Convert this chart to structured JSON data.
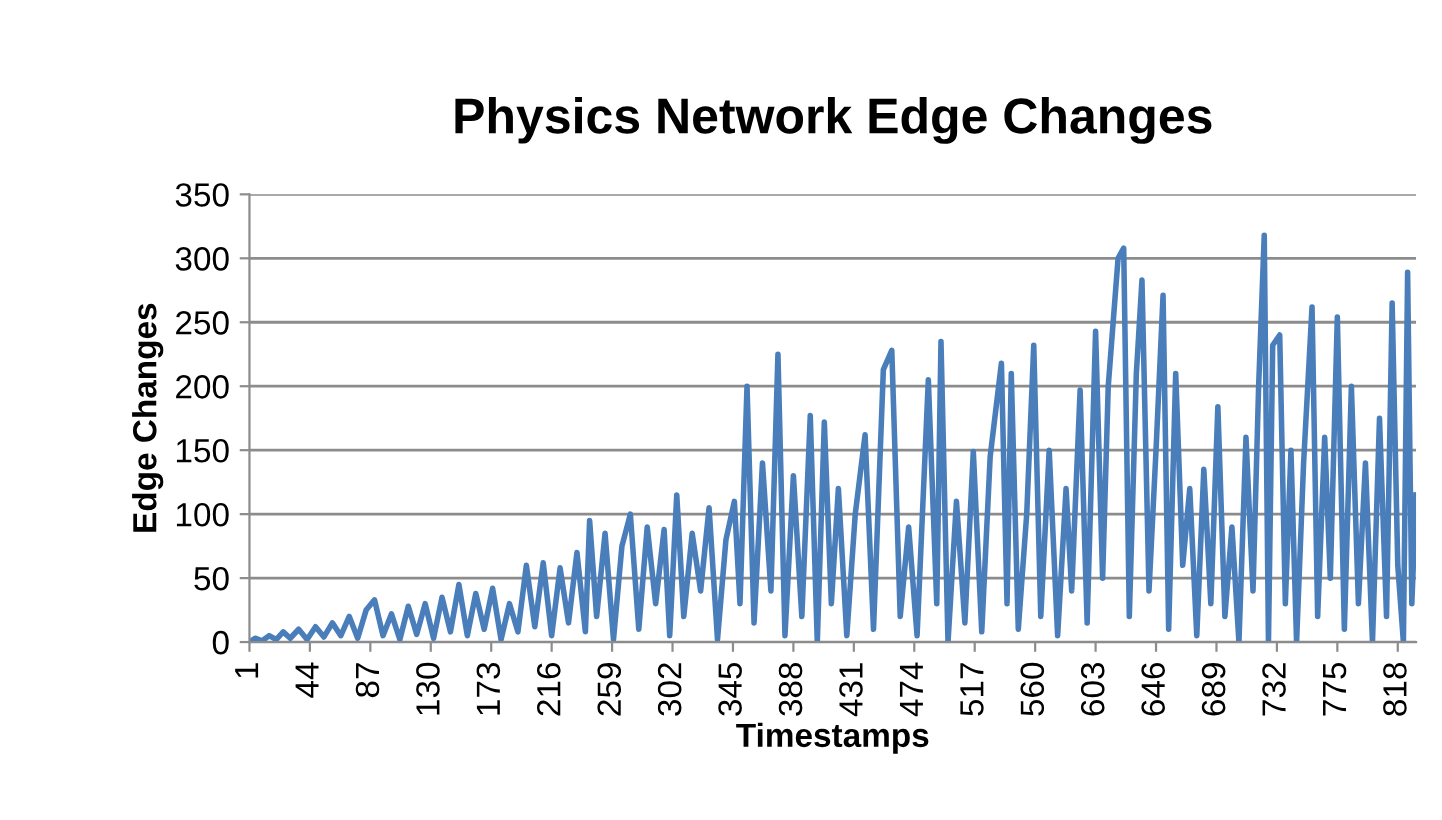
{
  "chart_data": {
    "type": "line",
    "title": "Physics Network Edge Changes",
    "xlabel": "Timestamps",
    "ylabel": "Edge Changes",
    "series": [
      {
        "color": "#4a7ebb",
        "x": [
          1,
          5,
          10,
          15,
          20,
          25,
          30,
          36,
          42,
          48,
          54,
          60,
          66,
          72,
          78,
          84,
          90,
          96,
          102,
          108,
          114,
          120,
          126,
          132,
          138,
          144,
          150,
          156,
          162,
          168,
          174,
          180,
          186,
          192,
          198,
          204,
          210,
          216,
          222,
          228,
          234,
          240,
          243,
          248,
          254,
          260,
          266,
          272,
          278,
          284,
          290,
          296,
          300,
          305,
          310,
          316,
          322,
          328,
          334,
          340,
          346,
          350,
          355,
          360,
          366,
          372,
          377,
          382,
          388,
          394,
          400,
          405,
          410,
          415,
          420,
          426,
          432,
          439,
          445,
          452,
          458,
          464,
          470,
          476,
          484,
          490,
          493,
          498,
          504,
          510,
          516,
          522,
          528,
          536,
          540,
          543,
          548,
          554,
          559,
          564,
          570,
          576,
          582,
          586,
          592,
          597,
          603,
          608,
          612,
          619,
          623,
          627,
          632,
          636,
          641,
          646,
          651,
          655,
          660,
          665,
          670,
          675,
          680,
          685,
          690,
          695,
          700,
          705,
          710,
          715,
          719,
          723,
          726,
          729,
          734,
          738,
          742,
          746,
          751,
          757,
          761,
          766,
          770,
          775,
          780,
          785,
          790,
          795,
          800,
          805,
          810,
          814,
          818,
          822,
          825,
          828,
          831
        ],
        "values": [
          0,
          3,
          1,
          5,
          2,
          8,
          3,
          10,
          2,
          12,
          4,
          15,
          5,
          20,
          3,
          25,
          33,
          5,
          22,
          2,
          28,
          6,
          30,
          3,
          35,
          8,
          45,
          5,
          38,
          10,
          42,
          2,
          30,
          8,
          60,
          12,
          62,
          5,
          58,
          15,
          70,
          8,
          95,
          20,
          85,
          2,
          75,
          100,
          10,
          90,
          30,
          88,
          5,
          115,
          20,
          85,
          40,
          105,
          2,
          80,
          110,
          30,
          200,
          15,
          140,
          40,
          225,
          5,
          130,
          20,
          177,
          0,
          172,
          30,
          120,
          5,
          100,
          162,
          10,
          213,
          228,
          20,
          90,
          5,
          205,
          30,
          235,
          0,
          110,
          15,
          149,
          8,
          145,
          218,
          30,
          210,
          10,
          100,
          232,
          20,
          150,
          5,
          120,
          40,
          197,
          15,
          243,
          50,
          200,
          300,
          308,
          20,
          210,
          283,
          40,
          150,
          271,
          10,
          210,
          60,
          120,
          5,
          135,
          30,
          184,
          20,
          90,
          0,
          160,
          40,
          200,
          318,
          0,
          232,
          240,
          30,
          150,
          0,
          140,
          262,
          20,
          160,
          50,
          254,
          10,
          200,
          30,
          140,
          0,
          175,
          20,
          265,
          60,
          0,
          289,
          30,
          115
        ]
      }
    ],
    "xlim": [
      1,
      831
    ],
    "xticks": [
      1,
      44,
      87,
      130,
      173,
      216,
      259,
      302,
      345,
      388,
      431,
      474,
      517,
      560,
      603,
      646,
      689,
      732,
      775,
      818
    ],
    "ylim": [
      0,
      350
    ],
    "yticks": [
      0,
      50,
      100,
      150,
      200,
      250,
      300,
      350
    ],
    "grid": "y",
    "legend": false,
    "marker": "none",
    "line_style": "solid"
  }
}
